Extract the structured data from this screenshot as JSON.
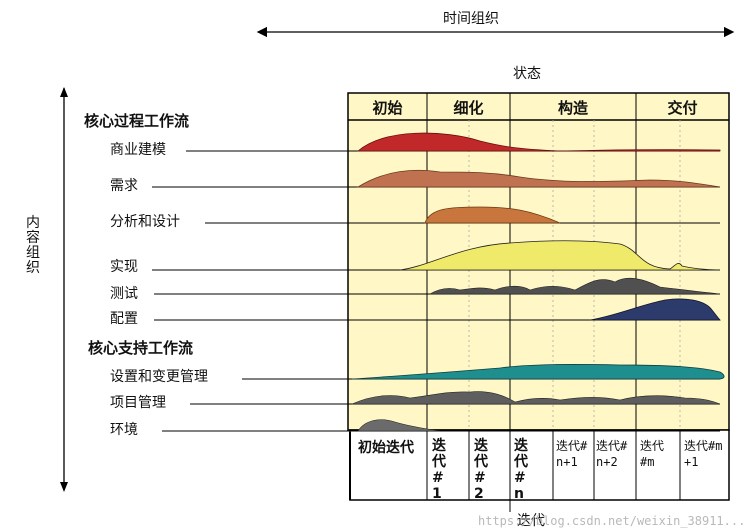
{
  "time_axis_label": "时间组织",
  "content_axis_label": "内容组织",
  "state_label": "状态",
  "phases": [
    "初始",
    "细化",
    "构造",
    "交付"
  ],
  "core_process_heading": "核心过程工作流",
  "core_support_heading": "核心支持工作流",
  "process_workflows": [
    "商业建模",
    "需求",
    "分析和设计",
    "实现",
    "测试",
    "配置"
  ],
  "support_workflows": [
    "设置和变更管理",
    "项目管理",
    "环境"
  ],
  "iterations": [
    "初始迭代",
    "迭代#1",
    "迭代#2",
    "迭代#n",
    "迭代#n+1",
    "迭代#n+2",
    "迭代#m",
    "迭代#m+1"
  ],
  "iteration_axis_label": "迭代",
  "watermark": "https://blog.csdn.net/weixin_38911...",
  "colors": {
    "panel_bg": "#fff7c6",
    "business_modeling": "#c0282a",
    "requirements": "#c0714f",
    "analysis_design": "#c8753e",
    "implementation": "#f0ea6a",
    "test": "#505050",
    "configuration": "#2d3b6c",
    "change_management": "#1f8e8e",
    "project_management": "#5e5e5e",
    "environment": "#6b6b6b"
  }
}
